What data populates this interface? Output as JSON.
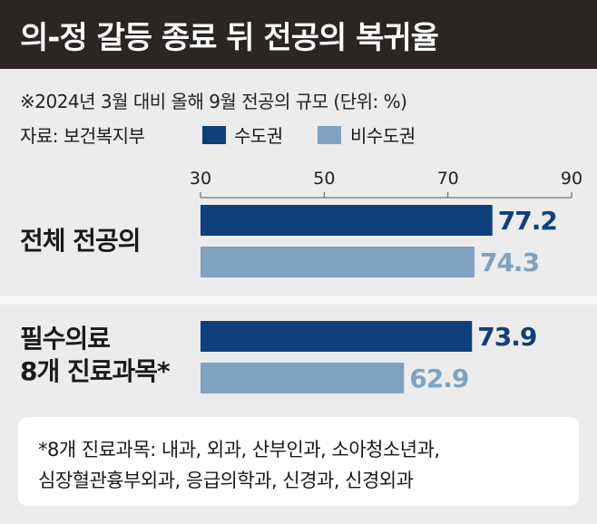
{
  "header": {
    "title": "의-정 갈등 종료 뒤 전공의 복귀율"
  },
  "note": "※2024년 3월 대비 올해 9월 전공의 규모 (단위: %)",
  "source_label": "자료: 보건복지부",
  "legend": [
    {
      "label": "수도권",
      "color": "#0f3f7c"
    },
    {
      "label": "비수도권",
      "color": "#7fa3c0"
    }
  ],
  "groups": [
    {
      "label_lines": [
        "전체 전공의"
      ]
    },
    {
      "label_lines": [
        "필수의료",
        "8개 진료과목*"
      ]
    }
  ],
  "chart_data": {
    "type": "bar",
    "orientation": "horizontal",
    "title": "의-정 갈등 종료 뒤 전공의 복귀율",
    "categories": [
      "전체 전공의",
      "필수의료 8개 진료과목*"
    ],
    "series": [
      {
        "name": "수도권",
        "color": "#0f3f7c",
        "values": [
          77.2,
          73.9
        ]
      },
      {
        "name": "비수도권",
        "color": "#7fa3c0",
        "values": [
          74.3,
          62.9
        ]
      }
    ],
    "xlim": [
      30,
      90
    ],
    "xticks": [
      30,
      50,
      70,
      90
    ],
    "unit": "%",
    "grid": false,
    "legend_position": "top-left"
  },
  "footnote": {
    "line1": "*8개 진료과목: 내과, 외과, 산부인과, 소아청소년과,",
    "line2": "심장혈관흉부외과, 응급의학과, 신경과, 신경외과"
  }
}
